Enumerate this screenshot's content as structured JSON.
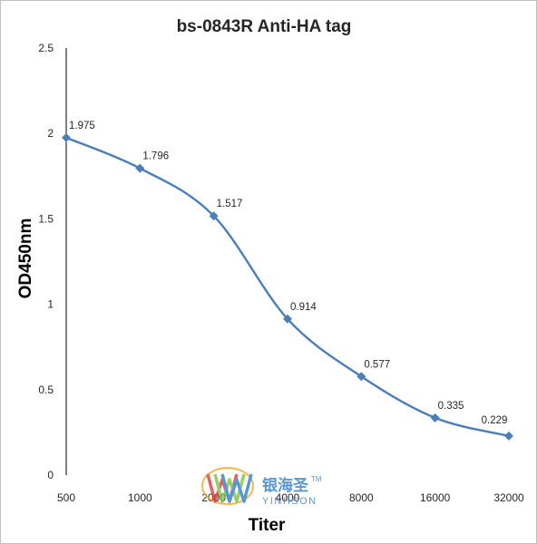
{
  "chart_data": {
    "type": "line",
    "title": "bs-0843R Anti-HA tag",
    "xlabel": "Titer",
    "ylabel": "OD450nm",
    "categories": [
      "500",
      "1000",
      "2000",
      "4000",
      "8000",
      "16000",
      "32000"
    ],
    "series": [
      {
        "values": [
          1.975,
          1.796,
          1.517,
          0.914,
          0.577,
          0.335,
          0.229
        ],
        "labels": [
          "1.975",
          "1.796",
          "1.517",
          "0.914",
          "0.577",
          "0.335",
          "0.229"
        ],
        "color": "#4a7ebb"
      }
    ],
    "yticks": [
      "0",
      "0.5",
      "1",
      "1.5",
      "2",
      "2.5"
    ],
    "ylim": [
      0,
      2.5
    ],
    "grid": false,
    "legend": "none",
    "line_style": "smooth",
    "marker": "diamond"
  },
  "watermark": {
    "chinese": "银海圣",
    "english": "YINHSON",
    "trademark": "TM",
    "colors": {
      "red": "#e03a3a",
      "green": "#7cc242",
      "blue": "#2f7fc8",
      "orange": "#f5a623"
    }
  },
  "colors": {
    "series": "#4a7ebb",
    "axis": "#000000",
    "border": "#bfbfbf"
  }
}
